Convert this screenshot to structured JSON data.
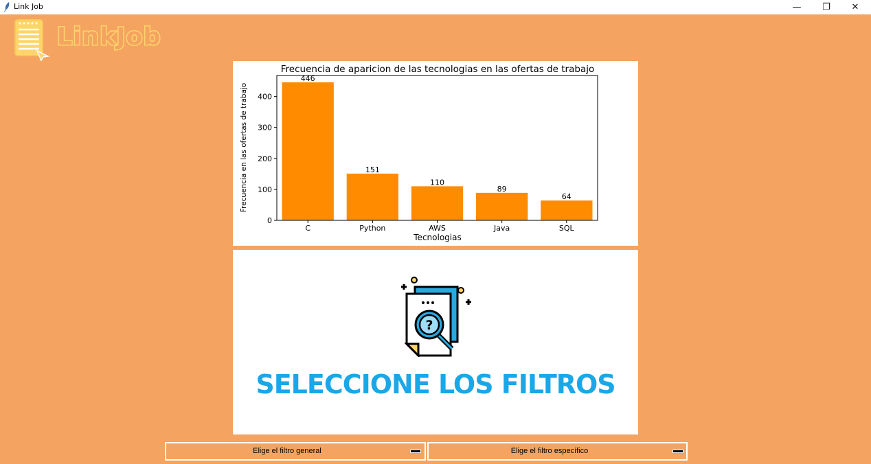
{
  "window": {
    "title": "Link Job",
    "minimize_glyph": "—",
    "restore_glyph": "❐",
    "close_glyph": "✕"
  },
  "logo": {
    "text": "LinkJob"
  },
  "chart_data": {
    "type": "bar",
    "title": "Frecuencia de aparicion de las tecnologias en las ofertas de trabajo",
    "xlabel": "Tecnologias",
    "ylabel": "Frecuencia en las ofertas de trabajo",
    "categories": [
      "C",
      "Python",
      "AWS",
      "Java",
      "SQL"
    ],
    "values": [
      446,
      151,
      110,
      89,
      64
    ],
    "yticks": [
      0,
      100,
      200,
      300,
      400
    ],
    "ylim": [
      0,
      468
    ],
    "bar_color": "#ff8c00",
    "grid": false,
    "data_labels": true
  },
  "placeholder": {
    "caption": "SELECCIONE LOS FILTROS",
    "icon": "document-search-question-icon"
  },
  "filters": {
    "general_label": "Elige el filtro general",
    "specific_label": "Elige el filtro específico"
  },
  "colors": {
    "background": "#f4a460",
    "bar": "#ff8c00",
    "caption": "#1aa7e8",
    "logo_outline": "#ffd56b"
  }
}
